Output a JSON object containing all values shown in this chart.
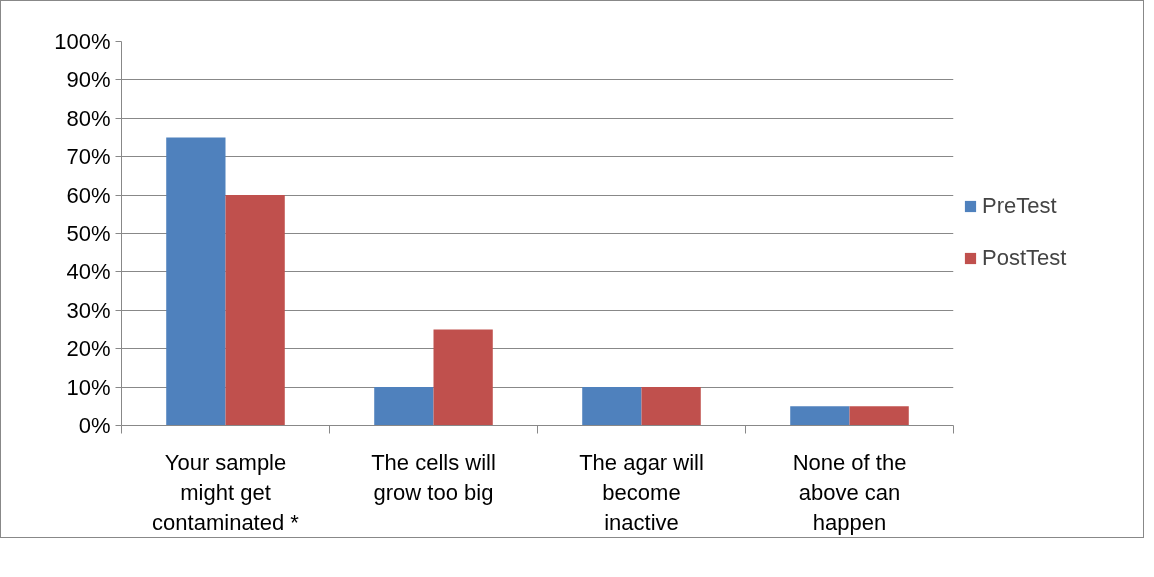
{
  "chart_data": {
    "type": "bar",
    "categories": [
      "Your sample might get contaminated *",
      "The cells will grow too big",
      "The agar will become inactive",
      "None of the above can happen"
    ],
    "series": [
      {
        "name": "PreTest",
        "color": "#4f81bd",
        "values": [
          75,
          10,
          10,
          5
        ]
      },
      {
        "name": "PostTest",
        "color": "#c0504d",
        "values": [
          60,
          25,
          10,
          5
        ]
      }
    ],
    "ylim": [
      0,
      100
    ],
    "yticks": [
      {
        "value": 0,
        "label": "0%"
      },
      {
        "value": 10,
        "label": "10%"
      },
      {
        "value": 20,
        "label": "20%"
      },
      {
        "value": 30,
        "label": "30%"
      },
      {
        "value": 40,
        "label": "40%"
      },
      {
        "value": 50,
        "label": "50%"
      },
      {
        "value": 60,
        "label": "60%"
      },
      {
        "value": 70,
        "label": "70%"
      },
      {
        "value": 80,
        "label": "80%"
      },
      {
        "value": 90,
        "label": "90%"
      },
      {
        "value": 100,
        "label": "100%"
      }
    ],
    "grid": "y",
    "legend": "right"
  }
}
